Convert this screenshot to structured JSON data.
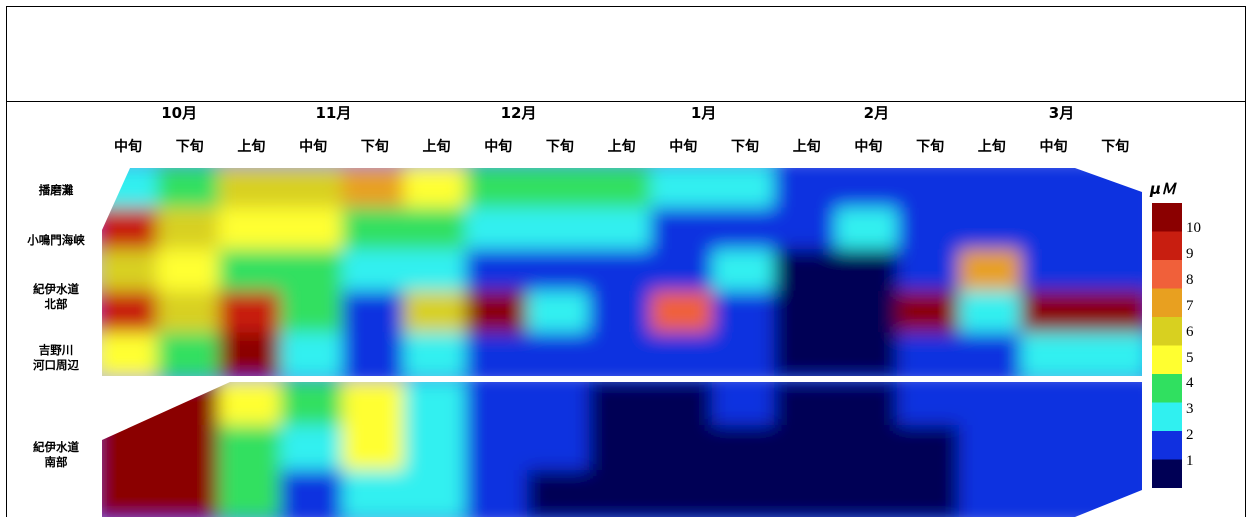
{
  "chart_data": {
    "type": "heatmap",
    "unit_label": "μＭ",
    "months": [
      "10月",
      "11月",
      "12月",
      "1月",
      "2月",
      "3月"
    ],
    "periods": [
      "中旬",
      "下旬",
      "上旬",
      "中旬",
      "下旬",
      "上旬",
      "中旬",
      "下旬",
      "上旬",
      "中旬",
      "下旬",
      "上旬",
      "中旬",
      "下旬",
      "上旬",
      "中旬",
      "下旬"
    ],
    "regions": [
      "播磨灘",
      "小鳴門海峡",
      "紀伊水道\n北部",
      "吉野川\n河口周辺",
      "紀伊水道\n南部"
    ],
    "legend_levels": [
      "10",
      "9",
      "8",
      "7",
      "6",
      "5",
      "4",
      "3",
      "2",
      "1"
    ],
    "legend_colors": [
      "#8b0000",
      "#c81e10",
      "#f0603a",
      "#e8a020",
      "#d8d020",
      "#ffff30",
      "#30e060",
      "#30f0f0",
      "#1030e0",
      "#000055"
    ],
    "colorscale_range": [
      1,
      10
    ],
    "values_north_panel": [
      [
        3,
        4,
        6,
        6,
        7,
        5,
        4,
        4,
        4,
        3,
        3,
        2,
        2,
        2,
        2,
        2,
        2
      ],
      [
        9,
        6,
        5,
        5,
        4,
        4,
        3,
        3,
        3,
        2,
        2,
        2,
        3,
        2,
        2,
        2,
        2
      ],
      [
        6,
        5,
        4,
        4,
        3,
        3,
        2,
        2,
        2,
        2,
        3,
        1,
        1,
        2,
        7,
        2,
        2
      ],
      [
        9,
        6,
        9,
        4,
        2,
        6,
        10,
        3,
        2,
        8,
        2,
        1,
        1,
        10,
        3,
        10,
        10
      ],
      [
        5,
        4,
        10,
        3,
        2,
        3,
        2,
        2,
        2,
        2,
        2,
        1,
        1,
        2,
        2,
        3,
        3
      ]
    ],
    "values_south_panel": [
      [
        10,
        10,
        5,
        4,
        5,
        3,
        2,
        2,
        1,
        1,
        2,
        1,
        1,
        2,
        2,
        2,
        2
      ],
      [
        10,
        10,
        4,
        3,
        5,
        3,
        2,
        2,
        1,
        1,
        1,
        1,
        1,
        1,
        2,
        2,
        2
      ],
      [
        10,
        10,
        4,
        2,
        3,
        3,
        2,
        1,
        1,
        1,
        1,
        1,
        1,
        1,
        2,
        2,
        2
      ]
    ]
  }
}
